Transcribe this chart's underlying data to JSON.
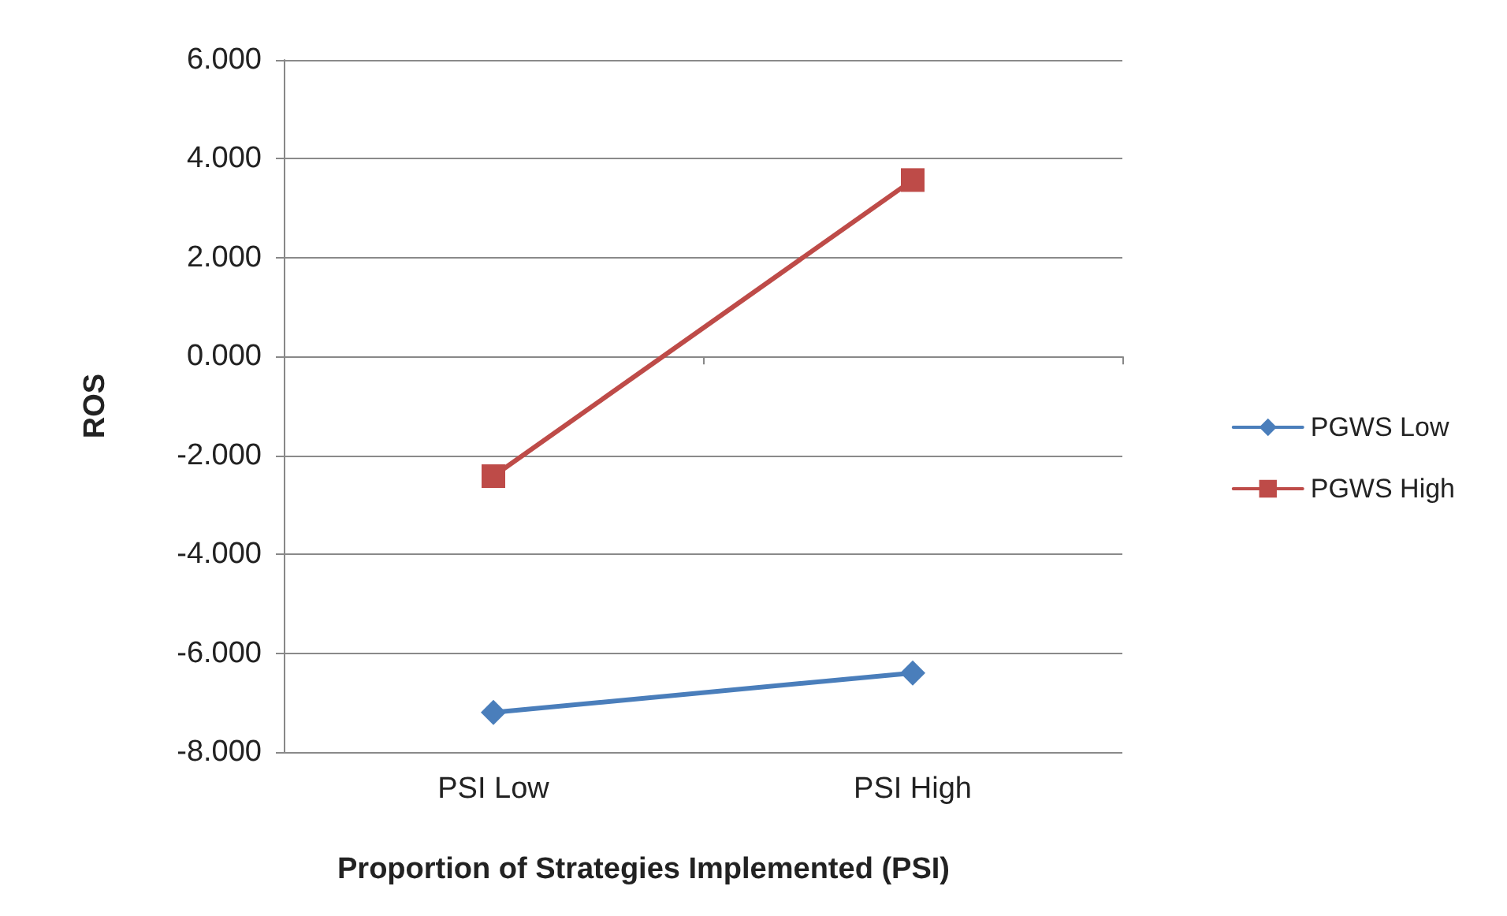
{
  "chart_data": {
    "type": "line",
    "xlabel": "Proportion of Strategies Implemented (PSI)",
    "ylabel": "ROS",
    "categories": [
      "PSI Low",
      "PSI High"
    ],
    "series": [
      {
        "name": "PGWS Low",
        "color": "#4a7ebb",
        "values": [
          -7.2,
          -6.4
        ],
        "marker": "diamond"
      },
      {
        "name": "PGWS High",
        "color": "#be4b48",
        "values": [
          -2.42,
          3.57
        ],
        "marker": "square"
      }
    ],
    "ylim": [
      -8,
      6
    ],
    "yticks": [
      {
        "value": -8,
        "label": "-8.000"
      },
      {
        "value": -6,
        "label": "-6.000"
      },
      {
        "value": -4,
        "label": "-4.000"
      },
      {
        "value": -2,
        "label": "-2.000"
      },
      {
        "value": 0,
        "label": "0.000"
      },
      {
        "value": 2,
        "label": "2.000"
      },
      {
        "value": 4,
        "label": "4.000"
      },
      {
        "value": 6,
        "label": "6.000"
      }
    ],
    "grid": "y",
    "legend": "right"
  }
}
